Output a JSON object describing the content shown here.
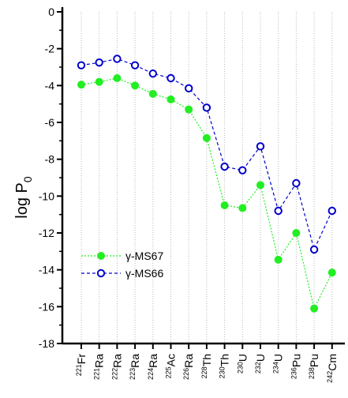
{
  "chart_data": {
    "type": "line",
    "title": "",
    "xlabel": "",
    "ylabel": "log P",
    "ylabel_subscript": "0",
    "ylim": [
      -18,
      0
    ],
    "yticks": [
      0,
      -2,
      -4,
      -6,
      -8,
      -10,
      -12,
      -14,
      -16,
      -18
    ],
    "grid": "vertical dotted",
    "legend_placement": "bottom-left",
    "categories": [
      {
        "mass": "221",
        "element": "Fr"
      },
      {
        "mass": "221",
        "element": "Ra"
      },
      {
        "mass": "222",
        "element": "Ra"
      },
      {
        "mass": "223",
        "element": "Ra"
      },
      {
        "mass": "224",
        "element": "Ra"
      },
      {
        "mass": "225",
        "element": "Ac"
      },
      {
        "mass": "226",
        "element": "Ra"
      },
      {
        "mass": "228",
        "element": "Th"
      },
      {
        "mass": "230",
        "element": "Th"
      },
      {
        "mass": "230",
        "element": "U"
      },
      {
        "mass": "232",
        "element": "U"
      },
      {
        "mass": "234",
        "element": "U"
      },
      {
        "mass": "236",
        "element": "Pu"
      },
      {
        "mass": "238",
        "element": "Pu"
      },
      {
        "mass": "242",
        "element": "Cm"
      }
    ],
    "series": [
      {
        "name": "γ-MS67",
        "color": "#22ee22",
        "marker": "filled-circle",
        "line": "dotted",
        "values": [
          -3.95,
          -3.8,
          -3.6,
          -4.0,
          -4.45,
          -4.75,
          -5.3,
          -6.85,
          -10.5,
          -10.65,
          -9.4,
          -13.45,
          -12.0,
          -16.1,
          -14.15
        ]
      },
      {
        "name": "γ-MS66",
        "color": "#0000cc",
        "marker": "open-circle",
        "line": "dashed",
        "values": [
          -2.9,
          -2.75,
          -2.55,
          -2.9,
          -3.35,
          -3.6,
          -4.15,
          -5.2,
          -8.4,
          -8.6,
          -7.3,
          -10.8,
          -9.3,
          -12.9,
          -10.8
        ]
      }
    ]
  }
}
